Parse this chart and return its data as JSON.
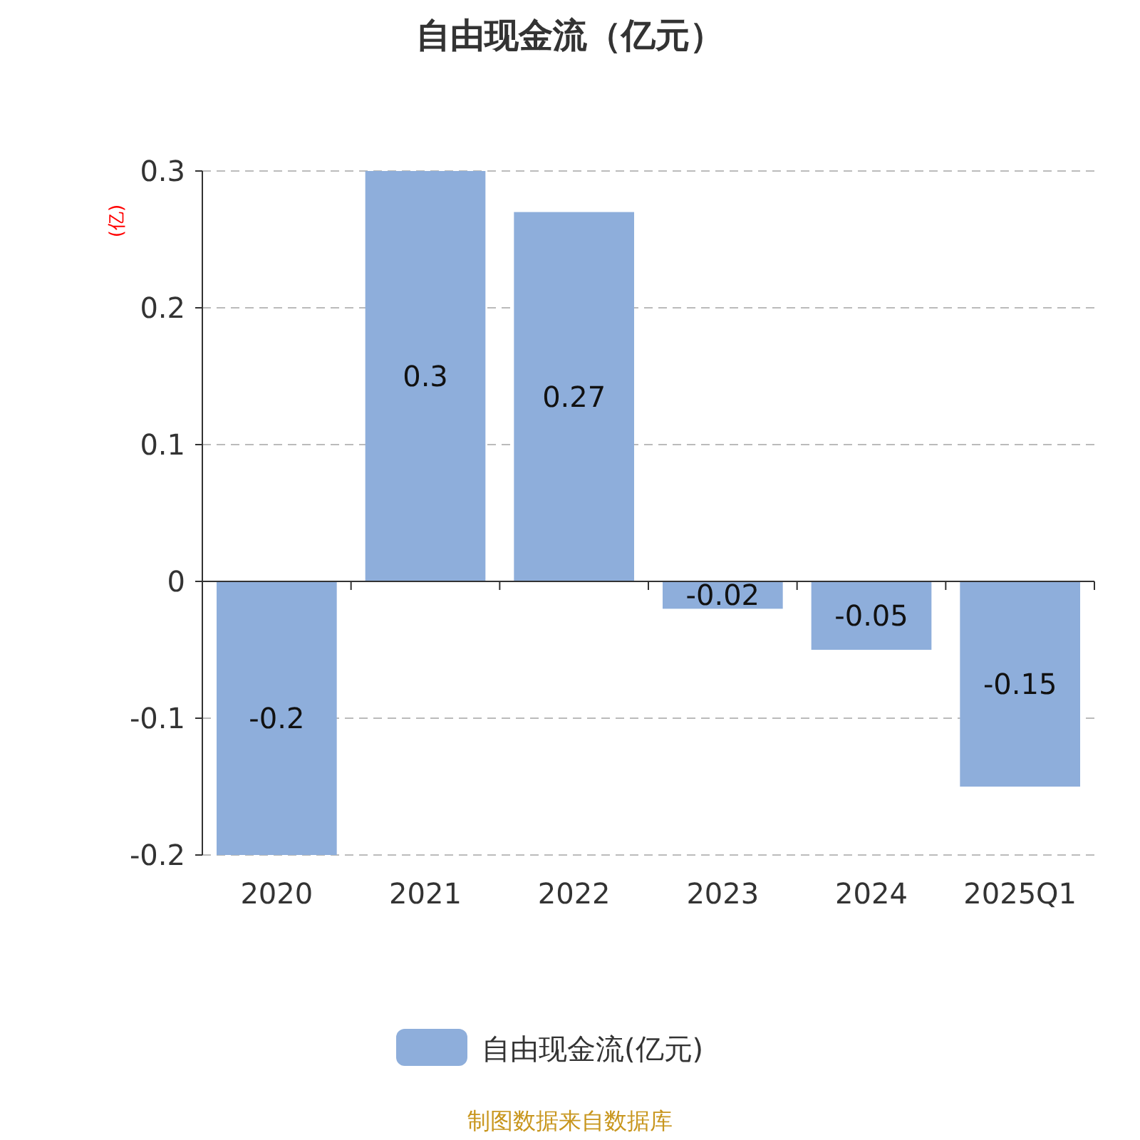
{
  "chart_data": {
    "type": "bar",
    "title": "自由现金流（亿元）",
    "ylabel": "(亿)",
    "categories": [
      "2020",
      "2021",
      "2022",
      "2023",
      "2024",
      "2025Q1"
    ],
    "series": [
      {
        "name": "自由现金流(亿元)",
        "color": "#8eaedb",
        "values": [
          -0.2,
          0.3,
          0.27,
          -0.02,
          -0.05,
          -0.15
        ]
      }
    ],
    "ylim": [
      -0.2,
      0.3
    ],
    "yticks": [
      -0.2,
      -0.1,
      0,
      0.1,
      0.2,
      0.3
    ],
    "grid": "y",
    "legend": "bottom",
    "data_labels": true,
    "annotations": [
      "制图数据来自数据库"
    ]
  }
}
